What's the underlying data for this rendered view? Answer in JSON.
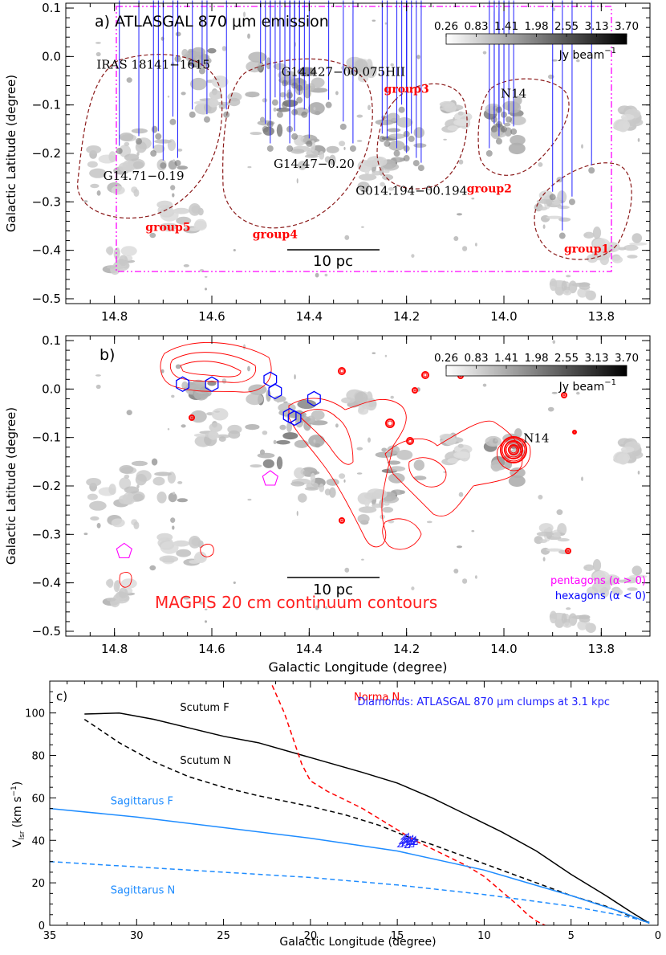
{
  "chart_data": [
    {
      "panel": "a",
      "type": "scatter",
      "title": "a) ATLASGAL 870 μm emission",
      "xlabel": "",
      "ylabel": "Galactic Latitude (degree)",
      "xlim": [
        14.9,
        13.7
      ],
      "ylim": [
        -0.51,
        0.11
      ],
      "xticks": [
        "14.8",
        "14.6",
        "14.4",
        "14.2",
        "14.0",
        "13.8"
      ],
      "yticks": [
        "0.1",
        "0.0",
        "−0.1",
        "−0.2",
        "−0.3",
        "−0.4",
        "−0.5"
      ],
      "colorbar": {
        "ticks": [
          "0.26",
          "0.83",
          "1.41",
          "1.98",
          "2.55",
          "3.13",
          "3.70"
        ],
        "unit_prefix": "Jy beam",
        "unit_exp": "−1"
      },
      "scalebar": "10 pc",
      "source_labels": [
        {
          "text": "IRAS 18141−1615",
          "l": 14.72,
          "b": -0.025
        },
        {
          "text": "G14.427−00.075HII",
          "l": 14.33,
          "b": -0.04
        },
        {
          "text": "G14.71−0.19",
          "l": 14.74,
          "b": -0.255
        },
        {
          "text": "G14.47−0.20",
          "l": 14.39,
          "b": -0.23
        },
        {
          "text": "G014.194−00.194",
          "l": 14.19,
          "b": -0.285
        },
        {
          "text": "N14",
          "l": 13.98,
          "b": -0.085
        }
      ],
      "group_labels": [
        {
          "text": "group1",
          "l": 13.83,
          "b": -0.405
        },
        {
          "text": "group2",
          "l": 14.03,
          "b": -0.28
        },
        {
          "text": "group3",
          "l": 14.2,
          "b": -0.075
        },
        {
          "text": "group4",
          "l": 14.47,
          "b": -0.375
        },
        {
          "text": "group5",
          "l": 14.69,
          "b": -0.36
        }
      ],
      "clumps": [
        {
          "l": 14.67,
          "b": -0.005
        },
        {
          "l": 14.62,
          "b": -0.03
        },
        {
          "l": 14.79,
          "b": -0.195
        },
        {
          "l": 14.75,
          "b": -0.175
        },
        {
          "l": 14.72,
          "b": -0.2
        },
        {
          "l": 14.7,
          "b": -0.225
        },
        {
          "l": 14.71,
          "b": -0.165
        },
        {
          "l": 14.68,
          "b": -0.135
        },
        {
          "l": 14.67,
          "b": -0.22
        },
        {
          "l": 14.64,
          "b": -0.12
        },
        {
          "l": 14.61,
          "b": -0.13
        },
        {
          "l": 14.57,
          "b": -0.12
        },
        {
          "l": 14.5,
          "b": -0.025
        },
        {
          "l": 14.45,
          "b": -0.055
        },
        {
          "l": 14.43,
          "b": -0.06
        },
        {
          "l": 14.42,
          "b": -0.065
        },
        {
          "l": 14.44,
          "b": -0.08
        },
        {
          "l": 14.47,
          "b": -0.095
        },
        {
          "l": 14.45,
          "b": -0.1
        },
        {
          "l": 14.42,
          "b": -0.09
        },
        {
          "l": 14.46,
          "b": -0.12
        },
        {
          "l": 14.43,
          "b": -0.115
        },
        {
          "l": 14.41,
          "b": -0.12
        },
        {
          "l": 14.48,
          "b": -0.14
        },
        {
          "l": 14.49,
          "b": -0.15
        },
        {
          "l": 14.44,
          "b": -0.15
        },
        {
          "l": 14.43,
          "b": -0.165
        },
        {
          "l": 14.48,
          "b": -0.19
        },
        {
          "l": 14.44,
          "b": -0.19
        },
        {
          "l": 14.4,
          "b": -0.18
        },
        {
          "l": 14.36,
          "b": -0.1
        },
        {
          "l": 14.33,
          "b": -0.145
        },
        {
          "l": 14.31,
          "b": -0.19
        },
        {
          "l": 14.21,
          "b": -0.11
        },
        {
          "l": 14.25,
          "b": -0.17
        },
        {
          "l": 14.24,
          "b": -0.18
        },
        {
          "l": 14.22,
          "b": -0.2
        },
        {
          "l": 14.2,
          "b": -0.16
        },
        {
          "l": 14.19,
          "b": -0.17
        },
        {
          "l": 14.2,
          "b": -0.19
        },
        {
          "l": 14.2,
          "b": -0.21
        },
        {
          "l": 14.18,
          "b": -0.22
        },
        {
          "l": 14.17,
          "b": -0.23
        },
        {
          "l": 14.01,
          "b": -0.11
        },
        {
          "l": 14.0,
          "b": -0.12
        },
        {
          "l": 14.02,
          "b": -0.13
        },
        {
          "l": 14.01,
          "b": -0.14
        },
        {
          "l": 13.99,
          "b": -0.13
        },
        {
          "l": 14.02,
          "b": -0.15
        },
        {
          "l": 14.0,
          "b": -0.15
        },
        {
          "l": 13.98,
          "b": -0.155
        },
        {
          "l": 14.01,
          "b": -0.175
        },
        {
          "l": 14.03,
          "b": -0.2
        },
        {
          "l": 13.82,
          "b": -0.235
        },
        {
          "l": 13.9,
          "b": -0.29
        },
        {
          "l": 13.86,
          "b": -0.3
        },
        {
          "l": 13.88,
          "b": -0.37
        }
      ]
    },
    {
      "panel": "b",
      "type": "scatter",
      "title": "b)",
      "xlabel": "Galactic Longitude (degree)",
      "ylabel": "Galactic Latitude (degree)",
      "xlim": [
        14.9,
        13.7
      ],
      "ylim": [
        -0.51,
        0.11
      ],
      "xticks": [
        "14.8",
        "14.6",
        "14.4",
        "14.2",
        "14.0",
        "13.8"
      ],
      "yticks": [
        "0.1",
        "0.0",
        "−0.1",
        "−0.2",
        "−0.3",
        "−0.4",
        "−0.5"
      ],
      "colorbar": {
        "ticks": [
          "0.26",
          "0.83",
          "1.41",
          "1.98",
          "2.55",
          "3.13",
          "3.70"
        ],
        "unit_prefix": "Jy beam",
        "unit_exp": "−1"
      },
      "scalebar": "10 pc",
      "source_labels": [
        {
          "text": "N14",
          "l": 13.96,
          "b": -0.11
        }
      ],
      "contour_label": "MAGPIS 20 cm continuum contours",
      "legend": [
        {
          "text": "pentagons (α > 0)",
          "color": "#ff00ff"
        },
        {
          "text": "hexagons (α < 0)",
          "color": "#0000ff"
        }
      ],
      "pentagons": [
        {
          "l": 14.48,
          "b": -0.185
        },
        {
          "l": 14.78,
          "b": -0.335
        }
      ],
      "hexagons": [
        {
          "l": 14.66,
          "b": 0.01
        },
        {
          "l": 14.6,
          "b": 0.01
        },
        {
          "l": 14.48,
          "b": 0.02
        },
        {
          "l": 14.47,
          "b": -0.005
        },
        {
          "l": 14.39,
          "b": -0.02
        },
        {
          "l": 14.44,
          "b": -0.055
        },
        {
          "l": 14.43,
          "b": -0.06
        }
      ]
    },
    {
      "panel": "c",
      "type": "line",
      "title": "c)",
      "xlabel": "Galactic Longitude (degree)",
      "ylabel_main": "V",
      "ylabel_sub": "lsr",
      "ylabel_unit": "(km s",
      "ylabel_exp": "−1",
      "xlim": [
        35,
        0
      ],
      "ylim": [
        0,
        115
      ],
      "xticks": [
        35,
        30,
        25,
        20,
        15,
        10,
        5,
        0
      ],
      "yticks": [
        0,
        20,
        40,
        60,
        80,
        100
      ],
      "annotation": "Diamonds: ATLASGAL 870 μm clumps at 3.1 kpc",
      "series": [
        {
          "name": "Scutum F",
          "color": "#000000",
          "style": "solid",
          "x": [
            33,
            31,
            29,
            27,
            25,
            23,
            20,
            17,
            15,
            13,
            11,
            9,
            7,
            5,
            3,
            1.5,
            0.5
          ],
          "y": [
            99.5,
            100,
            97,
            93,
            89,
            86,
            79,
            72,
            67,
            60,
            52,
            44,
            35,
            24,
            14,
            6,
            1
          ]
        },
        {
          "name": "Scutum N",
          "color": "#000000",
          "style": "dashed",
          "x": [
            33,
            31,
            29,
            27,
            25,
            23,
            20,
            18,
            16,
            14.5,
            13,
            11,
            9,
            7,
            5,
            3,
            1.5,
            0.5
          ],
          "y": [
            97,
            86,
            77,
            70,
            65,
            61,
            56,
            52,
            47,
            42,
            38,
            32,
            26,
            20,
            14,
            9,
            4,
            1
          ]
        },
        {
          "name": "Norma N",
          "color": "#ff0000",
          "style": "dashed",
          "x": [
            22.2,
            21.5,
            21,
            20.5,
            20,
            19,
            18,
            17,
            16,
            15,
            14,
            13,
            12,
            11,
            10,
            9,
            8,
            7.5,
            7,
            6.5,
            6.2
          ],
          "y": [
            113,
            100,
            88,
            76,
            68,
            63,
            59,
            55,
            50,
            45,
            40,
            36,
            32,
            28,
            23,
            16,
            9,
            5,
            2,
            0,
            -2
          ]
        },
        {
          "name": "Sagittarus F",
          "color": "#1e8cff",
          "style": "solid",
          "x": [
            35,
            30,
            25,
            20,
            15,
            10,
            5,
            2,
            0.5
          ],
          "y": [
            55,
            51,
            46,
            41,
            35,
            26,
            14,
            6,
            1
          ]
        },
        {
          "name": "Sagittarus N",
          "color": "#1e8cff",
          "style": "dashed",
          "x": [
            35,
            30,
            25,
            20,
            15,
            10,
            5,
            2,
            0.5
          ],
          "y": [
            30,
            27.5,
            25,
            22.5,
            19,
            14.5,
            9,
            4.5,
            1.5
          ]
        }
      ],
      "clumps": [
        {
          "l": 14.6,
          "v": 38.5
        },
        {
          "l": 14.5,
          "v": 40.5
        },
        {
          "l": 14.45,
          "v": 37.5
        },
        {
          "l": 14.4,
          "v": 39
        },
        {
          "l": 14.3,
          "v": 36.5
        },
        {
          "l": 14.25,
          "v": 39.5
        },
        {
          "l": 14.2,
          "v": 38
        },
        {
          "l": 14.1,
          "v": 40
        },
        {
          "l": 14.05,
          "v": 37
        },
        {
          "l": 14.0,
          "v": 38.5
        },
        {
          "l": 13.95,
          "v": 39.5
        },
        {
          "l": 13.85,
          "v": 38
        },
        {
          "l": 14.7,
          "v": 37
        },
        {
          "l": 14.35,
          "v": 41
        }
      ]
    }
  ],
  "colors": {
    "contour": "#ff0000",
    "ellipse": "#8b1a1a",
    "box": "#ff00ff",
    "clump": "#2020ff",
    "group_label": "#ff0000"
  }
}
